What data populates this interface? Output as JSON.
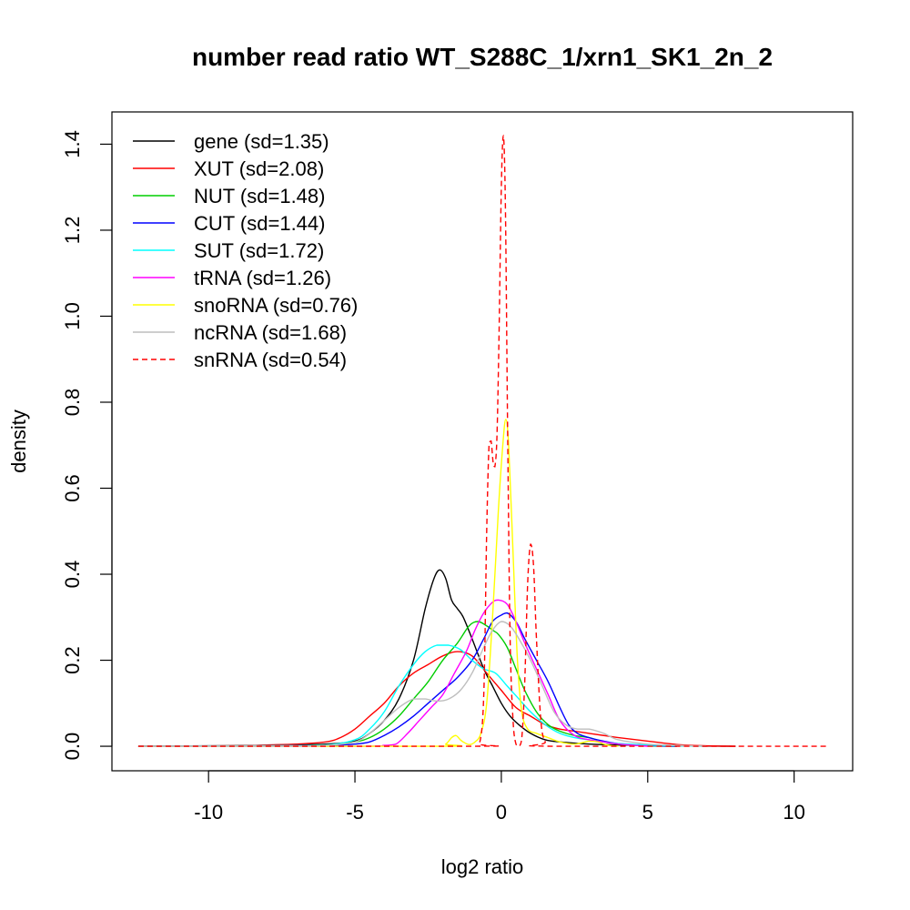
{
  "chart_data": {
    "type": "line",
    "title": "number read ratio WT_S288C_1/xrn1_SK1_2n_2",
    "xlabel": "log2 ratio",
    "ylabel": "density",
    "xlim": [
      -13.3,
      12.0
    ],
    "ylim": [
      -0.057,
      1.475
    ],
    "xticks": [
      -10,
      -5,
      0,
      5,
      10
    ],
    "xtick_labels": [
      "-10",
      "-5",
      "0",
      "5",
      "10"
    ],
    "yticks": [
      0.0,
      0.2,
      0.4,
      0.6,
      0.8,
      1.0,
      1.2,
      1.4
    ],
    "ytick_labels": [
      "0.0",
      "0.2",
      "0.4",
      "0.6",
      "0.8",
      "1.0",
      "1.2",
      "1.4"
    ],
    "grid": false,
    "legend_position": "top-left",
    "series": [
      {
        "name": "gene (sd=1.35)",
        "color": "#000000",
        "dash": "solid",
        "points": [
          [
            -12.4,
            0
          ],
          [
            -8,
            0.002
          ],
          [
            -6,
            0.005
          ],
          [
            -5,
            0.012
          ],
          [
            -4.5,
            0.03
          ],
          [
            -4,
            0.06
          ],
          [
            -3.5,
            0.11
          ],
          [
            -3,
            0.2
          ],
          [
            -2.6,
            0.32
          ],
          [
            -2.3,
            0.39
          ],
          [
            -2.1,
            0.41
          ],
          [
            -1.9,
            0.39
          ],
          [
            -1.7,
            0.34
          ],
          [
            -1.5,
            0.32
          ],
          [
            -1.3,
            0.3
          ],
          [
            -1,
            0.25
          ],
          [
            -0.6,
            0.18
          ],
          [
            -0.3,
            0.14
          ],
          [
            0,
            0.1
          ],
          [
            0.3,
            0.07
          ],
          [
            0.6,
            0.05
          ],
          [
            1,
            0.03
          ],
          [
            1.5,
            0.015
          ],
          [
            2,
            0.01
          ],
          [
            3,
            0.005
          ],
          [
            4,
            0.003
          ],
          [
            6,
            0.001
          ],
          [
            8,
            0
          ]
        ]
      },
      {
        "name": "XUT (sd=2.08)",
        "color": "#ff0000",
        "dash": "solid",
        "points": [
          [
            -12.4,
            0
          ],
          [
            -9,
            0.001
          ],
          [
            -8,
            0.003
          ],
          [
            -7,
            0.005
          ],
          [
            -6,
            0.01
          ],
          [
            -5.5,
            0.02
          ],
          [
            -5,
            0.04
          ],
          [
            -4.5,
            0.07
          ],
          [
            -4,
            0.1
          ],
          [
            -3.5,
            0.14
          ],
          [
            -3,
            0.17
          ],
          [
            -2.5,
            0.19
          ],
          [
            -2,
            0.21
          ],
          [
            -1.5,
            0.22
          ],
          [
            -1,
            0.21
          ],
          [
            -0.5,
            0.17
          ],
          [
            0,
            0.13
          ],
          [
            0.5,
            0.09
          ],
          [
            1,
            0.07
          ],
          [
            1.5,
            0.05
          ],
          [
            2,
            0.04
          ],
          [
            2.5,
            0.035
          ],
          [
            3,
            0.03
          ],
          [
            3.5,
            0.025
          ],
          [
            4,
            0.02
          ],
          [
            5,
            0.012
          ],
          [
            6,
            0.004
          ],
          [
            7,
            0.001
          ],
          [
            8,
            0
          ]
        ]
      },
      {
        "name": "NUT (sd=1.48)",
        "color": "#00cd00",
        "dash": "solid",
        "points": [
          [
            -12.4,
            0
          ],
          [
            -8,
            0.001
          ],
          [
            -6,
            0.003
          ],
          [
            -5,
            0.01
          ],
          [
            -4.5,
            0.02
          ],
          [
            -4,
            0.04
          ],
          [
            -3.5,
            0.07
          ],
          [
            -3,
            0.11
          ],
          [
            -2.5,
            0.15
          ],
          [
            -2,
            0.2
          ],
          [
            -1.5,
            0.24
          ],
          [
            -1.1,
            0.28
          ],
          [
            -0.8,
            0.29
          ],
          [
            -0.5,
            0.28
          ],
          [
            -0.3,
            0.27
          ],
          [
            -0.1,
            0.26
          ],
          [
            0.2,
            0.23
          ],
          [
            0.5,
            0.18
          ],
          [
            0.8,
            0.13
          ],
          [
            1.2,
            0.08
          ],
          [
            1.6,
            0.05
          ],
          [
            2,
            0.035
          ],
          [
            2.5,
            0.025
          ],
          [
            3,
            0.02
          ],
          [
            3.5,
            0.01
          ],
          [
            4,
            0.005
          ],
          [
            5,
            0.001
          ],
          [
            6,
            0
          ]
        ]
      },
      {
        "name": "CUT (sd=1.44)",
        "color": "#0000ff",
        "dash": "solid",
        "points": [
          [
            -12.4,
            0
          ],
          [
            -8,
            0.001
          ],
          [
            -6,
            0.002
          ],
          [
            -5,
            0.005
          ],
          [
            -4.5,
            0.01
          ],
          [
            -4,
            0.025
          ],
          [
            -3.5,
            0.045
          ],
          [
            -3,
            0.07
          ],
          [
            -2.5,
            0.1
          ],
          [
            -2,
            0.13
          ],
          [
            -1.5,
            0.16
          ],
          [
            -1,
            0.2
          ],
          [
            -0.6,
            0.25
          ],
          [
            -0.3,
            0.29
          ],
          [
            0,
            0.305
          ],
          [
            0.2,
            0.31
          ],
          [
            0.5,
            0.29
          ],
          [
            0.8,
            0.25
          ],
          [
            1.2,
            0.2
          ],
          [
            1.6,
            0.15
          ],
          [
            2,
            0.09
          ],
          [
            2.3,
            0.05
          ],
          [
            2.6,
            0.03
          ],
          [
            3,
            0.02
          ],
          [
            3.5,
            0.012
          ],
          [
            4,
            0.006
          ],
          [
            5,
            0.002
          ],
          [
            6,
            0
          ]
        ]
      },
      {
        "name": "SUT (sd=1.72)",
        "color": "#00ffff",
        "dash": "solid",
        "points": [
          [
            -12.4,
            0
          ],
          [
            -8,
            0.001
          ],
          [
            -6,
            0.003
          ],
          [
            -5,
            0.015
          ],
          [
            -4.5,
            0.04
          ],
          [
            -4,
            0.08
          ],
          [
            -3.5,
            0.14
          ],
          [
            -3,
            0.19
          ],
          [
            -2.6,
            0.22
          ],
          [
            -2.2,
            0.235
          ],
          [
            -1.8,
            0.235
          ],
          [
            -1.4,
            0.225
          ],
          [
            -1,
            0.2
          ],
          [
            -0.6,
            0.18
          ],
          [
            -0.2,
            0.17
          ],
          [
            0.2,
            0.14
          ],
          [
            0.6,
            0.11
          ],
          [
            1,
            0.08
          ],
          [
            1.5,
            0.05
          ],
          [
            2,
            0.03
          ],
          [
            2.5,
            0.02
          ],
          [
            3,
            0.015
          ],
          [
            3.5,
            0.01
          ],
          [
            4,
            0.006
          ],
          [
            5,
            0.003
          ],
          [
            6,
            0.001
          ],
          [
            7,
            0
          ]
        ]
      },
      {
        "name": "tRNA (sd=1.26)",
        "color": "#ff00ff",
        "dash": "solid",
        "points": [
          [
            -12.4,
            0
          ],
          [
            -5,
            0
          ],
          [
            -4,
            0.002
          ],
          [
            -3.6,
            0.005
          ],
          [
            -3.2,
            0.03
          ],
          [
            -2.8,
            0.06
          ],
          [
            -2.4,
            0.09
          ],
          [
            -2,
            0.12
          ],
          [
            -1.6,
            0.17
          ],
          [
            -1.2,
            0.22
          ],
          [
            -0.9,
            0.27
          ],
          [
            -0.6,
            0.31
          ],
          [
            -0.3,
            0.335
          ],
          [
            -0.1,
            0.34
          ],
          [
            0.2,
            0.33
          ],
          [
            0.5,
            0.29
          ],
          [
            0.8,
            0.24
          ],
          [
            1.2,
            0.18
          ],
          [
            1.6,
            0.12
          ],
          [
            2,
            0.06
          ],
          [
            2.5,
            0.025
          ],
          [
            3,
            0.015
          ],
          [
            3.5,
            0.01
          ],
          [
            4,
            0.005
          ],
          [
            5,
            0
          ]
        ]
      },
      {
        "name": "snoRNA (sd=0.76)",
        "color": "#ffff00",
        "dash": "solid",
        "points": [
          [
            -12.4,
            0
          ],
          [
            -2.2,
            0
          ],
          [
            -1.9,
            0.005
          ],
          [
            -1.7,
            0.02
          ],
          [
            -1.55,
            0.025
          ],
          [
            -1.4,
            0.015
          ],
          [
            -1.3,
            0.01
          ],
          [
            -1.1,
            0.004
          ],
          [
            -0.9,
            0.01
          ],
          [
            -0.7,
            0.03
          ],
          [
            -0.5,
            0.1
          ],
          [
            -0.3,
            0.3
          ],
          [
            -0.1,
            0.55
          ],
          [
            0.05,
            0.7
          ],
          [
            0.15,
            0.76
          ],
          [
            0.25,
            0.7
          ],
          [
            0.4,
            0.45
          ],
          [
            0.55,
            0.2
          ],
          [
            0.7,
            0.08
          ],
          [
            0.9,
            0.04
          ],
          [
            1.2,
            0.03
          ],
          [
            1.6,
            0.02
          ],
          [
            2,
            0.01
          ],
          [
            2.5,
            0.005
          ],
          [
            3,
            0.012
          ],
          [
            3.3,
            0.01
          ],
          [
            3.6,
            0.003
          ],
          [
            4,
            0
          ]
        ]
      },
      {
        "name": "ncRNA (sd=1.68)",
        "color": "#bebebe",
        "dash": "solid",
        "points": [
          [
            -12.4,
            0
          ],
          [
            -8,
            0
          ],
          [
            -6,
            0.002
          ],
          [
            -5,
            0.01
          ],
          [
            -4.5,
            0.03
          ],
          [
            -4,
            0.06
          ],
          [
            -3.5,
            0.09
          ],
          [
            -3,
            0.11
          ],
          [
            -2.6,
            0.11
          ],
          [
            -2.2,
            0.105
          ],
          [
            -1.8,
            0.11
          ],
          [
            -1.4,
            0.13
          ],
          [
            -1,
            0.17
          ],
          [
            -0.6,
            0.23
          ],
          [
            -0.3,
            0.27
          ],
          [
            0,
            0.29
          ],
          [
            0.3,
            0.28
          ],
          [
            0.6,
            0.25
          ],
          [
            1,
            0.2
          ],
          [
            1.4,
            0.14
          ],
          [
            1.8,
            0.08
          ],
          [
            2.2,
            0.05
          ],
          [
            2.6,
            0.04
          ],
          [
            3,
            0.04
          ],
          [
            3.5,
            0.03
          ],
          [
            4,
            0.015
          ],
          [
            5,
            0.005
          ],
          [
            6,
            0.002
          ],
          [
            7,
            0
          ]
        ]
      },
      {
        "name": "snRNA (sd=0.54)",
        "color": "#ff0000",
        "dash": "dashed",
        "points": [
          [
            -12.4,
            0
          ],
          [
            -1,
            0
          ],
          [
            -0.75,
            0.005
          ],
          [
            -0.6,
            0.12
          ],
          [
            -0.5,
            0.5
          ],
          [
            -0.42,
            0.7
          ],
          [
            -0.35,
            0.71
          ],
          [
            -0.28,
            0.66
          ],
          [
            -0.22,
            0.65
          ],
          [
            -0.15,
            0.72
          ],
          [
            -0.08,
            0.95
          ],
          [
            0,
            1.3
          ],
          [
            0.07,
            1.42
          ],
          [
            0.14,
            1.25
          ],
          [
            0.22,
            0.7
          ],
          [
            0.3,
            0.25
          ],
          [
            0.4,
            0.06
          ],
          [
            0.5,
            0.005
          ],
          [
            0.6,
            0
          ],
          [
            0.7,
            0.02
          ],
          [
            0.8,
            0.15
          ],
          [
            0.9,
            0.38
          ],
          [
            1.0,
            0.47
          ],
          [
            1.1,
            0.42
          ],
          [
            1.2,
            0.25
          ],
          [
            1.35,
            0.06
          ],
          [
            1.5,
            0.01
          ],
          [
            1.7,
            0
          ],
          [
            11.1,
            0
          ]
        ]
      }
    ]
  }
}
